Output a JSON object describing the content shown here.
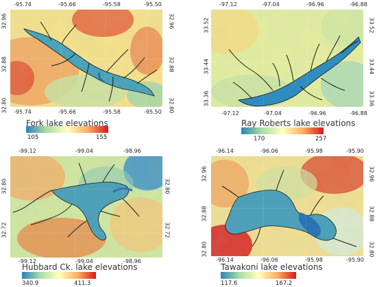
{
  "colormap": [
    "#2b83ba",
    "#abdda4",
    "#ffffbf",
    "#fdae61",
    "#d7191c"
  ],
  "panels": [
    {
      "id": "fork",
      "title": "Fork lake elevations",
      "x_ticks": [
        "-95.74",
        "-95.66",
        "-95.58",
        "-95.50"
      ],
      "y_ticks": [
        "32.96",
        "32.88",
        "32.80"
      ],
      "legend_min": "105",
      "legend_max": "155"
    },
    {
      "id": "ray-roberts",
      "title": "Ray Roberts lake elevations",
      "x_ticks": [
        "-97.12",
        "-97.04",
        "-96.96",
        "-96.88"
      ],
      "y_ticks": [
        "33.52",
        "33.44",
        "33.36"
      ],
      "legend_min": "170",
      "legend_max": "257"
    },
    {
      "id": "hubbard",
      "title": "Hubbard Ck. lake elevations",
      "x_ticks": [
        "-99.12",
        "-99.04",
        "-98.96"
      ],
      "y_ticks": [
        "32.80",
        "32.72"
      ],
      "legend_min": "340.9",
      "legend_max": "411.3"
    },
    {
      "id": "tawakoni",
      "title": "Tawakoni lake elevations",
      "x_ticks": [
        "-96.14",
        "-96.06",
        "-95.98",
        "-95.90"
      ],
      "y_ticks": [
        "32.96",
        "32.88",
        "32.80"
      ],
      "legend_min": "117.6",
      "legend_max": "167.2"
    }
  ]
}
